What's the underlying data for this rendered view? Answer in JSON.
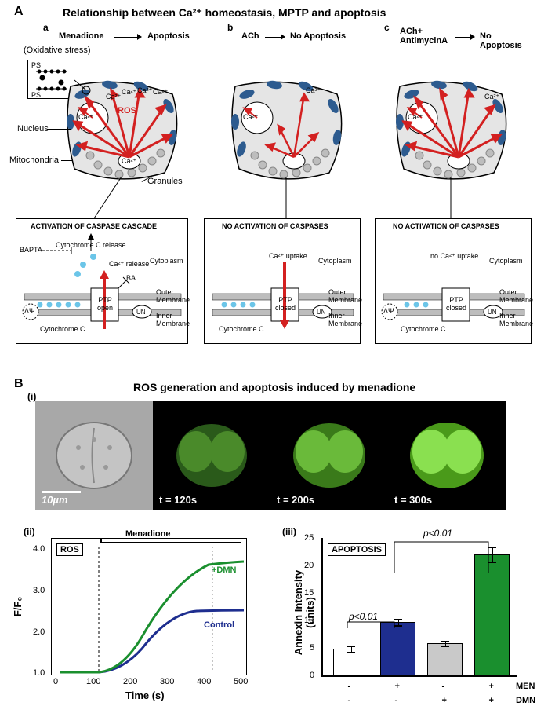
{
  "panelA": {
    "label": "A",
    "title": "Relationship between Ca²⁺ homeostasis, MPTP and apoptosis",
    "a": {
      "label": "a",
      "stim": "Menadione",
      "sub": "(Oxidative stress)",
      "outcome": "Apoptosis"
    },
    "b": {
      "label": "b",
      "stim": "ACh",
      "outcome": "No Apoptosis"
    },
    "c": {
      "label": "c",
      "stim": "ACh+ AntimycinA",
      "outcome": "No Apoptosis"
    },
    "labels": {
      "ps": "PS",
      "ca": "Ca²⁺",
      "ros": "ROS",
      "nucleus": "Nucleus",
      "mitochondria": "Mitochondria",
      "granules": "Granules"
    },
    "mech": {
      "a_title": "ACTIVATION OF CASPASE CASCADE",
      "bc_title": "NO ACTIVATION OF CASPASES",
      "cytoplasm": "Cytoplasm",
      "cytc_release": "Cytochrome C release",
      "ca_release": "Ca²⁺ release",
      "ca_uptake": "Ca²⁺ uptake",
      "no_ca_uptake": "no Ca²⁺ uptake",
      "bapta": "BAPTA",
      "ba": "BA",
      "ptp_open": "PTP open",
      "ptp_closed": "PTP closed",
      "outer": "Outer Membrane",
      "inner": "Inner Membrane",
      "cytc": "Cytochrome C",
      "un": "UN",
      "dpsi": "ΔΨ"
    },
    "colors": {
      "cell_fill": "#e5e5e5",
      "mito": "#2d5b8f",
      "arrow": "#d32020",
      "cytc_dot": "#6bc5e8",
      "membrane": "#bdbdbd"
    }
  },
  "panelB": {
    "label": "B",
    "title": "ROS generation and apoptosis induced by menadione",
    "i_label": "(i)",
    "ii_label": "(ii)",
    "iii_label": "(iii)",
    "micro": {
      "scalebar": "10µm",
      "t1": "t = 120s",
      "t2": "t = 200s",
      "t3": "t = 300s"
    },
    "rosChart": {
      "inset": "ROS",
      "bar_label": "Menadione",
      "series1": "+DMN",
      "series2": "Control",
      "ylabel": "F/F₀",
      "xlabel": "Time (s)",
      "xlim": [
        0,
        500
      ],
      "ylim": [
        1.0,
        4.0
      ],
      "yticks": [
        1.0,
        2.0,
        3.0,
        4.0
      ],
      "xticks": [
        0,
        100,
        200,
        300,
        400,
        500
      ],
      "colors": {
        "dmn": "#1a8f2e",
        "control": "#1e2e8f"
      }
    },
    "barChart": {
      "inset": "APOPTOSIS",
      "ylabel": "Annexin Intensity (units)",
      "ylim": [
        0,
        25
      ],
      "yticks": [
        0,
        5,
        10,
        15,
        20,
        25
      ],
      "bars": [
        {
          "value": 4.8,
          "err": 0.5,
          "color": "#ffffff"
        },
        {
          "value": 9.7,
          "err": 0.6,
          "color": "#1e2e8f"
        },
        {
          "value": 5.8,
          "err": 0.5,
          "color": "#c9c9c9"
        },
        {
          "value": 22.0,
          "err": 1.3,
          "color": "#1a8f2e"
        }
      ],
      "p1": "p<0.01",
      "p2": "p<0.01",
      "row_men": "MEN",
      "row_dmn": "DMN",
      "men": [
        "-",
        "+",
        "-",
        "+"
      ],
      "dmn": [
        "-",
        "-",
        "+",
        "+"
      ]
    }
  }
}
